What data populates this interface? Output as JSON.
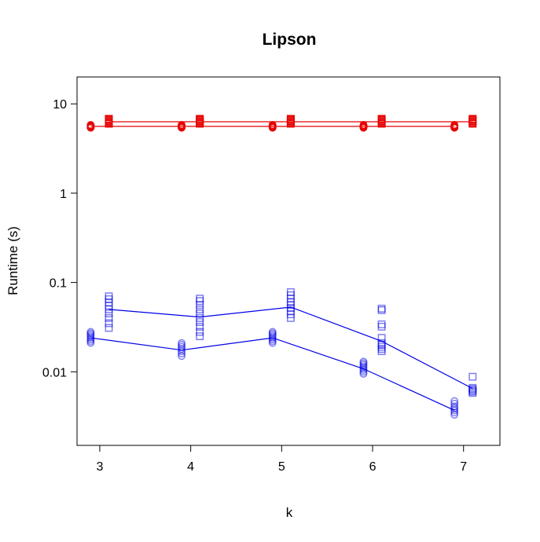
{
  "chart_data": {
    "type": "scatter",
    "title": "Lipson",
    "xlabel": "k",
    "ylabel": "Runtime (s)",
    "x_ticks": [
      "3",
      "4",
      "5",
      "6",
      "7"
    ],
    "y_ticks": [
      "10",
      "1",
      "0.1",
      "0.01"
    ],
    "y_tick_values": [
      10,
      1,
      0.1,
      0.01
    ],
    "y_scale": "log",
    "xlim": [
      2.75,
      7.4
    ],
    "ylim": [
      0.0015,
      20
    ],
    "grid": false,
    "legend": "none",
    "jitter_offset": 0.1,
    "series": [
      {
        "marker": "circle",
        "color": "#e60000",
        "points_alpha": 1.0,
        "x": [
          3,
          4,
          5,
          6,
          7
        ],
        "mean": [
          5.6,
          5.6,
          5.6,
          5.6,
          5.6
        ],
        "samples": [
          [
            5.4,
            5.5,
            5.6,
            5.7,
            5.8
          ],
          [
            5.4,
            5.5,
            5.6,
            5.7,
            5.8
          ],
          [
            5.4,
            5.5,
            5.6,
            5.7,
            5.8
          ],
          [
            5.4,
            5.5,
            5.6,
            5.7,
            5.8
          ],
          [
            5.4,
            5.5,
            5.6,
            5.7,
            5.8
          ]
        ]
      },
      {
        "marker": "square",
        "color": "#e60000",
        "points_alpha": 1.0,
        "x": [
          3,
          4,
          5,
          6,
          7
        ],
        "mean": [
          6.3,
          6.3,
          6.3,
          6.3,
          6.3
        ],
        "samples": [
          [
            6.0,
            6.2,
            6.4,
            6.6,
            6.8
          ],
          [
            6.0,
            6.2,
            6.4,
            6.6,
            6.8
          ],
          [
            6.0,
            6.2,
            6.4,
            6.6,
            6.8
          ],
          [
            6.0,
            6.2,
            6.4,
            6.6,
            6.8
          ],
          [
            6.0,
            6.2,
            6.4,
            6.6,
            6.8
          ]
        ]
      },
      {
        "marker": "circle",
        "color": "#0000e6",
        "points_alpha": 0.5,
        "x": [
          3,
          4,
          5,
          6,
          7
        ],
        "mean": [
          0.024,
          0.0175,
          0.024,
          0.0108,
          0.0037
        ],
        "samples": [
          [
            0.021,
            0.022,
            0.023,
            0.024,
            0.025,
            0.026,
            0.027,
            0.028
          ],
          [
            0.015,
            0.016,
            0.017,
            0.018,
            0.019,
            0.02,
            0.021
          ],
          [
            0.021,
            0.022,
            0.023,
            0.024,
            0.025,
            0.026,
            0.027,
            0.028
          ],
          [
            0.0095,
            0.01,
            0.0105,
            0.011,
            0.0115,
            0.012,
            0.0125,
            0.013
          ],
          [
            0.0033,
            0.0035,
            0.0037,
            0.0039,
            0.0041,
            0.0044,
            0.0047
          ]
        ]
      },
      {
        "marker": "square",
        "color": "#0000e6",
        "points_alpha": 0.5,
        "x": [
          3,
          4,
          5,
          6,
          7
        ],
        "mean": [
          0.05,
          0.041,
          0.053,
          0.022,
          0.0065
        ],
        "samples": [
          [
            0.031,
            0.035,
            0.04,
            0.045,
            0.05,
            0.055,
            0.06,
            0.065,
            0.07
          ],
          [
            0.025,
            0.028,
            0.032,
            0.036,
            0.04,
            0.045,
            0.05,
            0.056,
            0.062,
            0.066
          ],
          [
            0.04,
            0.044,
            0.048,
            0.052,
            0.056,
            0.06,
            0.066,
            0.072,
            0.078
          ],
          [
            0.017,
            0.018,
            0.019,
            0.02,
            0.021,
            0.024,
            0.032,
            0.034,
            0.049,
            0.051
          ],
          [
            0.0058,
            0.006,
            0.0062,
            0.0064,
            0.0066,
            0.0088
          ]
        ]
      }
    ]
  }
}
